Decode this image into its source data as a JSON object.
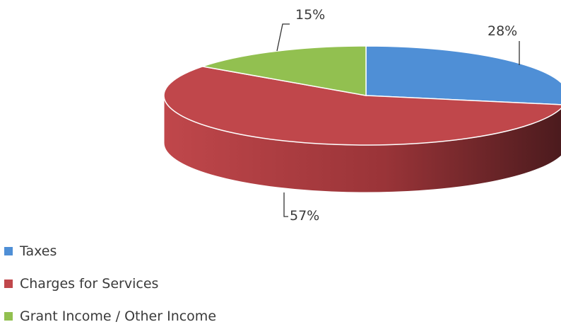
{
  "chart_data": {
    "type": "pie",
    "title": "",
    "three_d": true,
    "categories": [
      "Taxes",
      "Charges for Services",
      "Grant Income / Other Income"
    ],
    "values": [
      28,
      57,
      15
    ],
    "data_labels": [
      "28%",
      "57%",
      "15%"
    ],
    "colors": [
      "#4F8FD6",
      "#C0474B",
      "#92C050"
    ],
    "legend_position": "bottom-left",
    "label_leader_lines": true
  }
}
